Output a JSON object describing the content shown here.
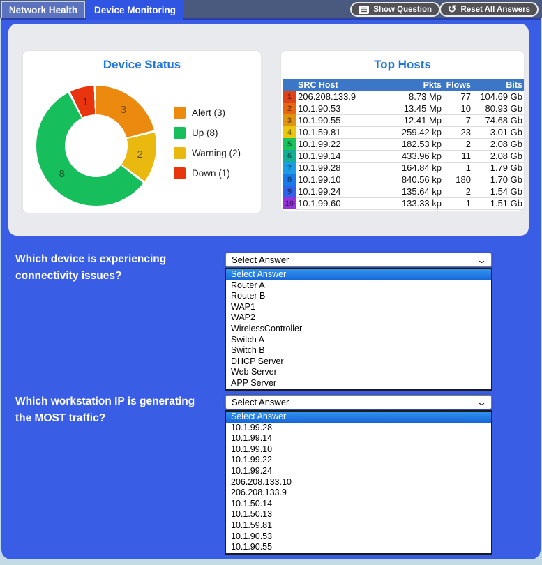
{
  "tabs": [
    {
      "label": "Network Health",
      "active": false
    },
    {
      "label": "Device Monitoring",
      "active": true
    }
  ],
  "toolbar": {
    "show_question_label": "Show Question",
    "reset_all_label": "Reset All Answers"
  },
  "device_status": {
    "title": "Device Status"
  },
  "top_hosts": {
    "title": "Top Hosts"
  },
  "chart_data": [
    {
      "type": "pie",
      "donut": true,
      "title": "Device Status",
      "segments": [
        {
          "label": "Alert",
          "value": 3,
          "color": "#EB8A0E"
        },
        {
          "label": "Warning",
          "value": 2,
          "color": "#E9B90F"
        },
        {
          "label": "Up",
          "value": 8,
          "color": "#17BE5C"
        },
        {
          "label": "Down",
          "value": 1,
          "color": "#E8350E"
        }
      ],
      "legend_order": [
        "Alert",
        "Up",
        "Warning",
        "Down"
      ],
      "legend_position": "right"
    },
    {
      "type": "table",
      "title": "Top Hosts",
      "columns": [
        "SRC Host",
        "Pkts",
        "Flows",
        "Bits"
      ],
      "rows": [
        {
          "rank": 1,
          "rank_color": "#DC431A",
          "host": "206.208.133.9",
          "pkts": "8.73 Mp",
          "flows": "77",
          "bits": "104.69 Gb"
        },
        {
          "rank": 2,
          "rank_color": "#E5670F",
          "host": "10.1.90.53",
          "pkts": "13.45 Mp",
          "flows": "10",
          "bits": "80.93 Gb"
        },
        {
          "rank": 3,
          "rank_color": "#E0930F",
          "host": "10.1.90.55",
          "pkts": "12.41 Mp",
          "flows": "7",
          "bits": "74.68 Gb"
        },
        {
          "rank": 4,
          "rank_color": "#EBC60F",
          "host": "10.1.59.81",
          "pkts": "259.42 kp",
          "flows": "23",
          "bits": "3.01 Gb"
        },
        {
          "rank": 5,
          "rank_color": "#17C35D",
          "host": "10.1.99.22",
          "pkts": "182.53 kp",
          "flows": "2",
          "bits": "2.08 Gb"
        },
        {
          "rank": 6,
          "rank_color": "#14AE96",
          "host": "10.1.99.14",
          "pkts": "433.96 kp",
          "flows": "11",
          "bits": "2.08 Gb"
        },
        {
          "rank": 7,
          "rank_color": "#1B9CE3",
          "host": "10.1.99.28",
          "pkts": "164.84 kp",
          "flows": "1",
          "bits": "1.79 Gb"
        },
        {
          "rank": 8,
          "rank_color": "#1A79E8",
          "host": "10.1.99.10",
          "pkts": "840.56 kp",
          "flows": "180",
          "bits": "1.70 Gb"
        },
        {
          "rank": 9,
          "rank_color": "#2F62E8",
          "host": "10.1.99.24",
          "pkts": "135.64 kp",
          "flows": "2",
          "bits": "1.54 Gb"
        },
        {
          "rank": 10,
          "rank_color": "#9633DB",
          "host": "10.1.99.60",
          "pkts": "133.33 kp",
          "flows": "1",
          "bits": "1.51 Gb"
        }
      ]
    }
  ],
  "questions": [
    {
      "prompt_line1": "Which device is experiencing",
      "prompt_line2": "connectivity issues?",
      "selected_value": "Select Answer",
      "highlighted_index": 0,
      "options": [
        "Select Answer",
        "Router A",
        "Router B",
        "WAP1",
        "WAP2",
        "WirelessController",
        "Switch A",
        "Switch B",
        "DHCP Server",
        "Web Server",
        "APP Server"
      ]
    },
    {
      "prompt_line1": "Which workstation IP is generating",
      "prompt_line2": "the MOST traffic?",
      "selected_value": "Select Answer",
      "highlighted_index": 0,
      "options": [
        "Select Answer",
        "10.1.99.28",
        "10.1.99.14",
        "10.1.99.10",
        "10.1.99.22",
        "10.1.99.24",
        "206.208.133.10",
        "206.208.133.9",
        "10.1.50.14",
        "10.1.50.13",
        "10.1.59.81",
        "10.1.90.53",
        "10.1.90.55"
      ]
    }
  ],
  "colors": {
    "main_blue": "#3A5DE5",
    "topbar_slate": "#4A5A7F",
    "panel_gray": "#E9EAED",
    "card_title_blue": "#2476D9",
    "table_header_blue": "#3C76C6",
    "highlight_blue": "#1E7FE8",
    "outer_teal": "#C3DBE5"
  }
}
